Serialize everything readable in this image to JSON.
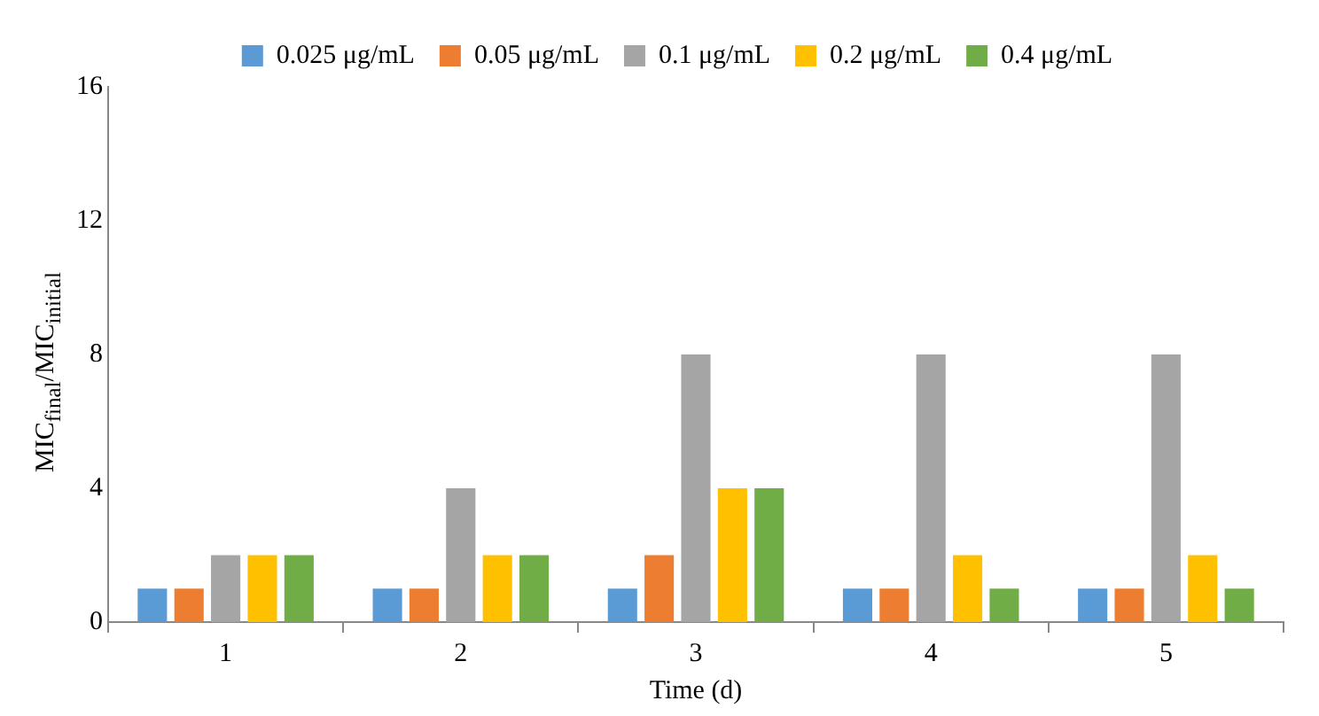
{
  "chart_data": {
    "type": "bar",
    "xlabel": "Time (d)",
    "ylabel": "MIC$_{final}$/MIC$_{initial}$",
    "categories": [
      "1",
      "2",
      "3",
      "4",
      "5"
    ],
    "series": [
      {
        "name": "0.025 μg/mL",
        "color": "#5b9bd5",
        "values": [
          1,
          1,
          1,
          1,
          1
        ]
      },
      {
        "name": "0.05 μg/mL",
        "color": "#ed7d31",
        "values": [
          1,
          1,
          2,
          1,
          1
        ]
      },
      {
        "name": "0.1 μg/mL",
        "color": "#a5a5a5",
        "values": [
          2,
          4,
          8,
          8,
          8
        ]
      },
      {
        "name": "0.2 μg/mL",
        "color": "#ffc000",
        "values": [
          2,
          2,
          4,
          2,
          2
        ]
      },
      {
        "name": "0.4 μg/mL",
        "color": "#70ad47",
        "values": [
          2,
          2,
          4,
          1,
          1
        ]
      }
    ],
    "ylim": [
      0,
      16
    ],
    "yticks": [
      0,
      4,
      8,
      12,
      16
    ],
    "grid": false,
    "legend": "top"
  }
}
